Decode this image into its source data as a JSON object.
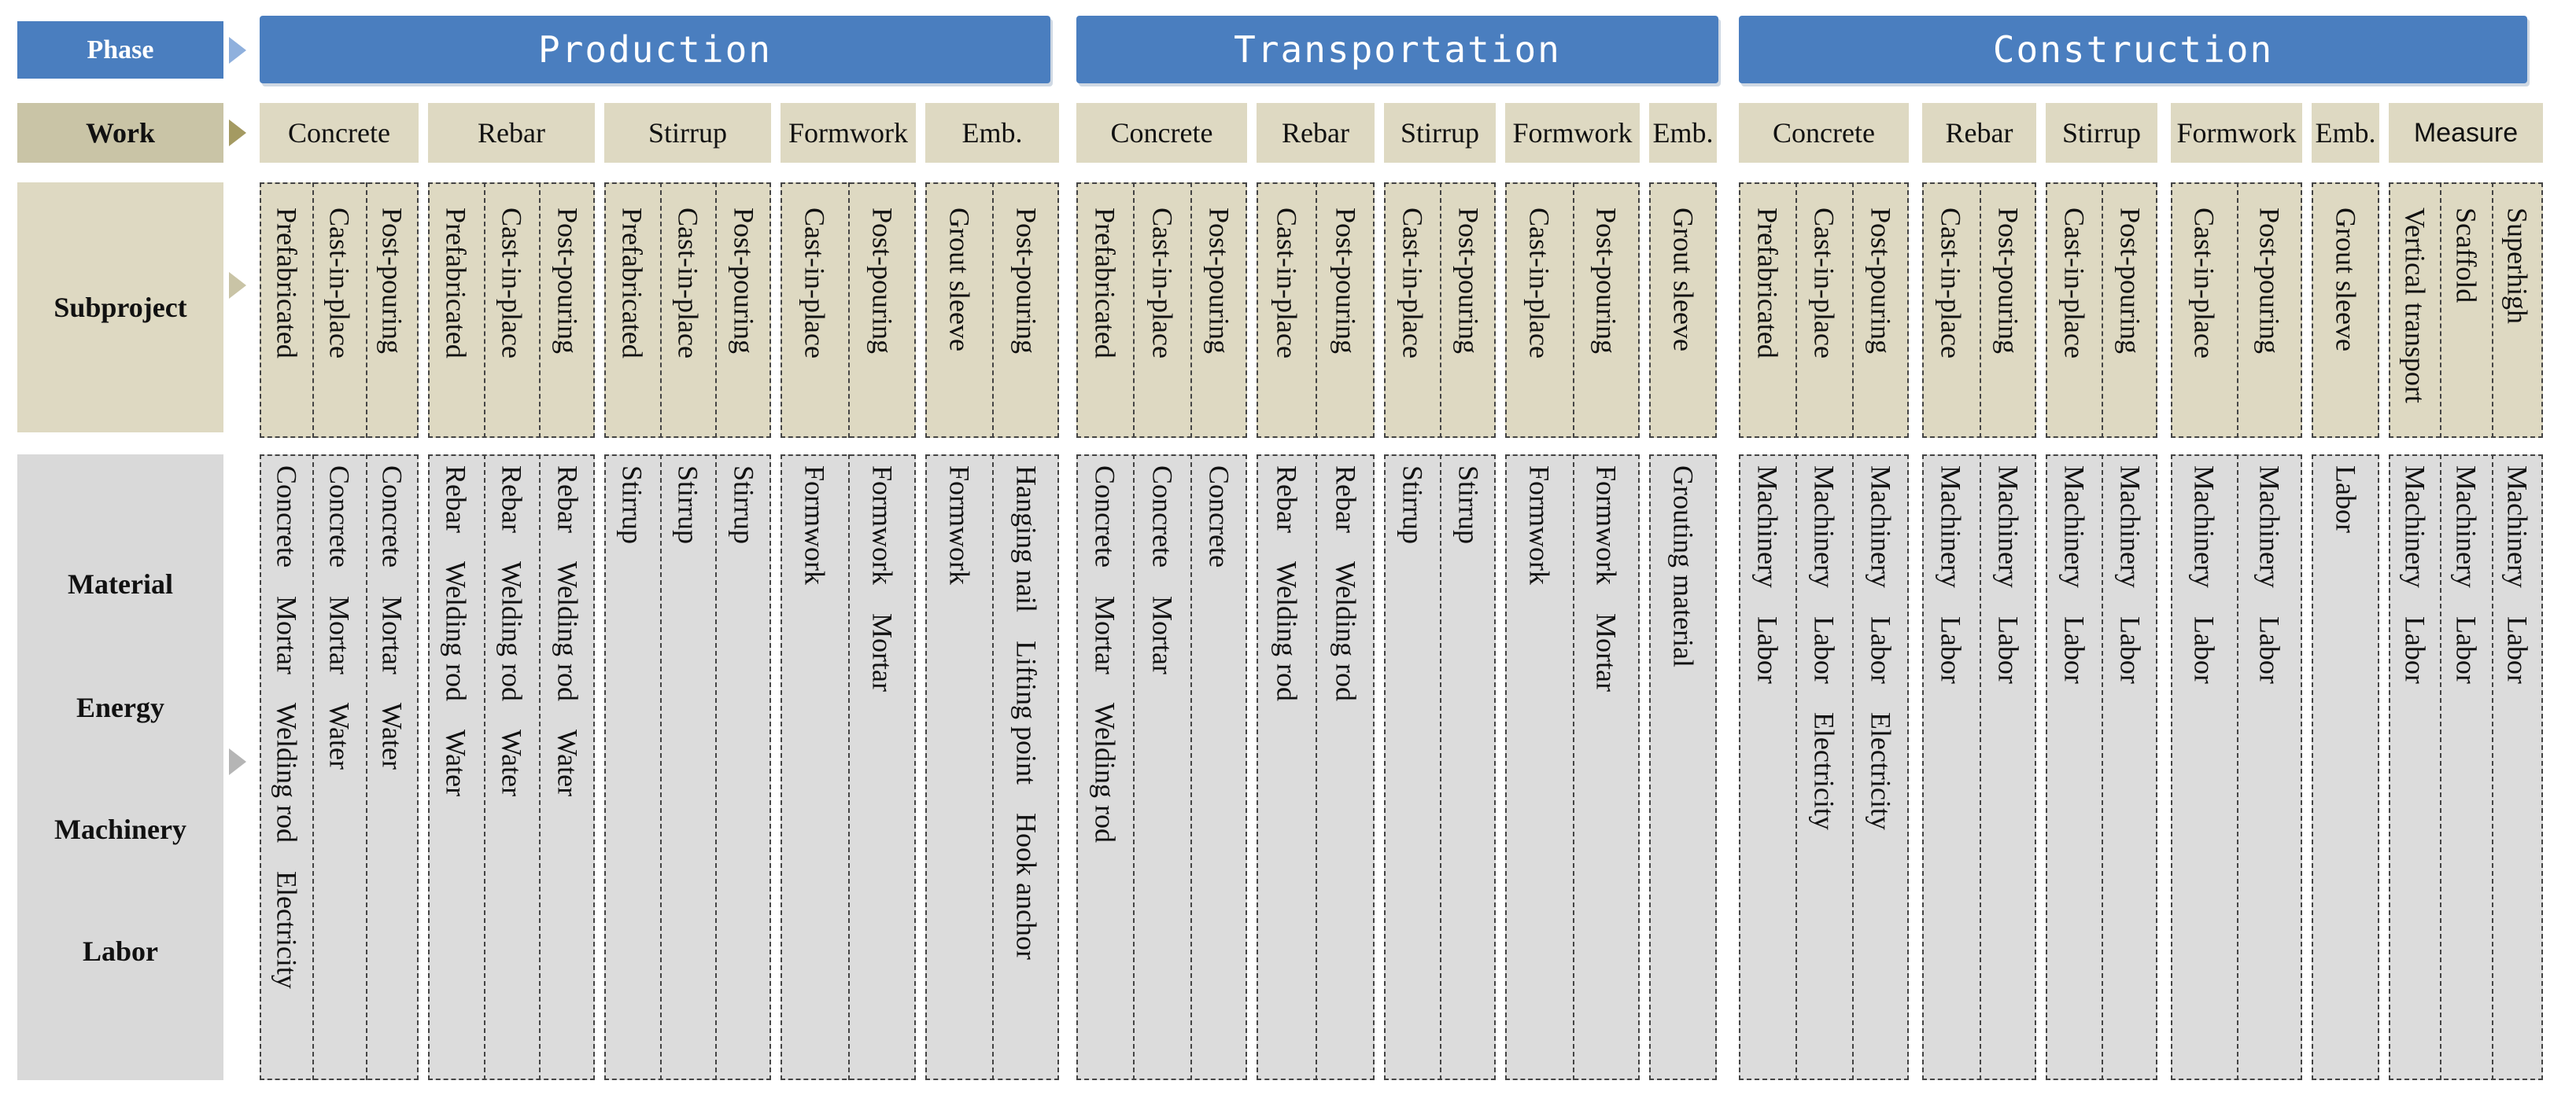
{
  "row_labels": {
    "phase": "Phase",
    "work": "Work",
    "subproject": "Subproject",
    "material_group": [
      "Material",
      "Energy",
      "Machinery",
      "Labor"
    ]
  },
  "phases": [
    {
      "label": "Production"
    },
    {
      "label": "Transportation"
    },
    {
      "label": "Construction"
    }
  ],
  "works": [
    {
      "label": "Concrete",
      "sans": false
    },
    {
      "label": "Rebar",
      "sans": false
    },
    {
      "label": "Stirrup",
      "sans": false
    },
    {
      "label": "Formwork",
      "sans": false
    },
    {
      "label": "Emb.",
      "sans": false
    },
    {
      "label": "Concrete",
      "sans": false
    },
    {
      "label": "Rebar",
      "sans": false
    },
    {
      "label": "Stirrup",
      "sans": false
    },
    {
      "label": "Formwork",
      "sans": false
    },
    {
      "label": "Emb.",
      "sans": false
    },
    {
      "label": "Concrete",
      "sans": false
    },
    {
      "label": "Rebar",
      "sans": false
    },
    {
      "label": "Stirrup",
      "sans": false
    },
    {
      "label": "Formwork",
      "sans": false
    },
    {
      "label": "Emb.",
      "sans": false
    },
    {
      "label": "Measure",
      "sans": true
    }
  ],
  "columns": [
    {
      "sub": "Prefabricated",
      "items": [
        "Concrete",
        "Mortar",
        "Welding rod",
        "Electricity"
      ]
    },
    {
      "sub": "Cast-in-place",
      "items": [
        "Concrete",
        "Mortar",
        "Water"
      ]
    },
    {
      "sub": "Post-pouring",
      "items": [
        "Concrete",
        "Mortar",
        "Water"
      ]
    },
    {
      "sub": "Prefabricated",
      "items": [
        "Rebar",
        "Welding rod",
        "Water"
      ]
    },
    {
      "sub": "Cast-in-place",
      "items": [
        "Rebar",
        "Welding rod",
        "Water"
      ]
    },
    {
      "sub": "Post-pouring",
      "items": [
        "Rebar",
        "Welding rod",
        "Water"
      ]
    },
    {
      "sub": "Prefabricated",
      "items": [
        "Stirrup"
      ]
    },
    {
      "sub": "Cast-in-place",
      "items": [
        "Stirrup"
      ]
    },
    {
      "sub": "Post-pouring",
      "items": [
        "Stirrup"
      ]
    },
    {
      "sub": "Cast-in-place",
      "items": [
        "Formwork"
      ]
    },
    {
      "sub": "Post-pouring",
      "items": [
        "Formwork",
        "Mortar"
      ]
    },
    {
      "sub": "Grout sleeve",
      "items": [
        "Formwork"
      ]
    },
    {
      "sub": "Post-pouring",
      "items": [
        "Hanging nail",
        "Lifting point",
        "Hook anchor"
      ]
    },
    {
      "sub": "Prefabricated",
      "items": [
        "Concrete",
        "Mortar",
        "Welding rod"
      ]
    },
    {
      "sub": "Cast-in-place",
      "items": [
        "Concrete",
        "Mortar"
      ]
    },
    {
      "sub": "Post-pouring",
      "items": [
        "Concrete"
      ]
    },
    {
      "sub": "Cast-in-place",
      "items": [
        "Rebar",
        "Welding rod"
      ]
    },
    {
      "sub": "Post-pouring",
      "items": [
        "Rebar",
        "Welding rod"
      ]
    },
    {
      "sub": "Cast-in-place",
      "items": [
        "Stirrup"
      ]
    },
    {
      "sub": "Post-pouring",
      "items": [
        "Stirrup"
      ]
    },
    {
      "sub": "Cast-in-place",
      "items": [
        "Formwork"
      ]
    },
    {
      "sub": "Post-pouring",
      "items": [
        "Formwork",
        "Mortar"
      ]
    },
    {
      "sub": "Grout sleeve",
      "items": [
        "Grouting material"
      ]
    },
    {
      "sub": "Prefabricated",
      "items": [
        "Machinery",
        "Labor"
      ]
    },
    {
      "sub": "Cast-in-place",
      "items": [
        "Machinery",
        "Labor",
        "Electricity"
      ]
    },
    {
      "sub": "Post-pouring",
      "items": [
        "Machinery",
        "Labor",
        "Electricity"
      ]
    },
    {
      "sub": "Cast-in-place",
      "items": [
        "Machinery",
        "Labor"
      ]
    },
    {
      "sub": "Post-pouring",
      "items": [
        "Machinery",
        "Labor"
      ]
    },
    {
      "sub": "Cast-in-place",
      "items": [
        "Machinery",
        "Labor"
      ]
    },
    {
      "sub": "Post-pouring",
      "items": [
        "Machinery",
        "Labor"
      ]
    },
    {
      "sub": "Cast-in-place",
      "items": [
        "Machinery",
        "Labor"
      ]
    },
    {
      "sub": "Post-pouring",
      "items": [
        "Machinery",
        "Labor"
      ]
    },
    {
      "sub": "Grout sleeve",
      "items": [
        "Labor"
      ]
    },
    {
      "sub": "Vertical transport",
      "items": [
        "Machinery",
        "Labor"
      ]
    },
    {
      "sub": "Scaffold",
      "items": [
        "Machinery",
        "Labor"
      ]
    },
    {
      "sub": "Superhigh",
      "items": [
        "Machinery",
        "Labor"
      ]
    }
  ],
  "colors": {
    "phase_fill": "#4a7ebf",
    "work_fill": "#ded9c2",
    "subproject_fill": "#ded9c2",
    "material_fill": "#dcdcdc",
    "phase_label_fill": "#4a7ebf",
    "work_label_fill": "#c9c4a6",
    "material_label_fill": "#d9d9d9"
  }
}
